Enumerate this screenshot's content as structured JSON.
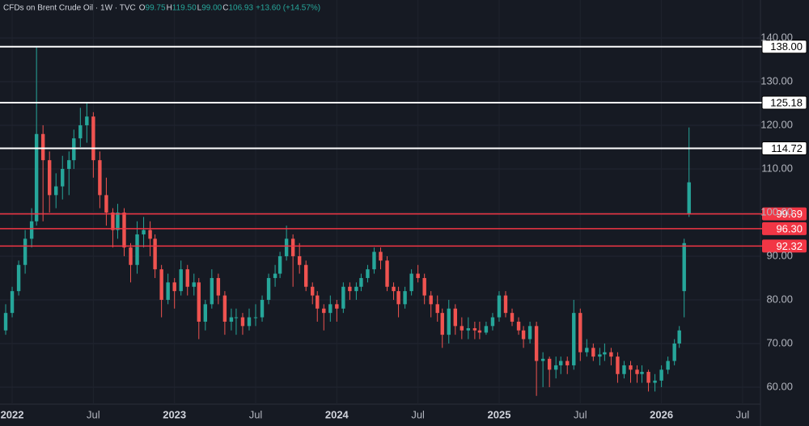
{
  "header": {
    "title": "CFDs on Brent Crude Oil · 1W · TVC",
    "ohlc": [
      {
        "key": "O",
        "value": "99.75"
      },
      {
        "key": "H",
        "value": "119.50"
      },
      {
        "key": "L",
        "value": "99.00"
      },
      {
        "key": "C",
        "value": "106.93"
      }
    ],
    "change": "+13.60 (+14.57%)"
  },
  "chart_data": {
    "type": "candlestick",
    "up_color": "#26a69a",
    "down_color": "#ef5350",
    "xlim": [
      2021.925,
      2026.61
    ],
    "ylim": [
      56.1,
      148.7
    ],
    "xticks": [
      {
        "value": 2022,
        "label": "2022"
      },
      {
        "value": 2022.5,
        "label": "Jul"
      },
      {
        "value": 2023,
        "label": "2023"
      },
      {
        "value": 2023.5,
        "label": "Jul"
      },
      {
        "value": 2024,
        "label": "2024"
      },
      {
        "value": 2024.5,
        "label": "Jul"
      },
      {
        "value": 2025,
        "label": "2025"
      },
      {
        "value": 2025.5,
        "label": "Jul"
      },
      {
        "value": 2026,
        "label": "2026"
      },
      {
        "value": 2026.5,
        "label": "Jul"
      }
    ],
    "yticks": [
      {
        "value": 140,
        "label": "140.00"
      },
      {
        "value": 130,
        "label": "130.00"
      },
      {
        "value": 120,
        "label": "120.00"
      },
      {
        "value": 110,
        "label": "110.00"
      },
      {
        "value": 100,
        "label": "100.00"
      },
      {
        "value": 90,
        "label": "90.00"
      },
      {
        "value": 80,
        "label": "80.00"
      },
      {
        "value": 70,
        "label": "70.00"
      },
      {
        "value": 60,
        "label": "60.00"
      }
    ],
    "levels": [
      {
        "value": 138,
        "label": "138.00",
        "color": "#ffffff"
      },
      {
        "value": 125.18,
        "label": "125.18",
        "color": "#ffffff"
      },
      {
        "value": 114.72,
        "label": "114.72",
        "color": "#ffffff"
      },
      {
        "value": 99.69,
        "label": "99.69",
        "color": "#f23645"
      },
      {
        "value": 96.3,
        "label": "96.30",
        "color": "#f23645"
      },
      {
        "value": 92.32,
        "label": "92.32",
        "color": "#f23645"
      }
    ],
    "x": [
      2021.96,
      2022.0,
      2022.04,
      2022.08,
      2022.12,
      2022.15,
      2022.19,
      2022.23,
      2022.27,
      2022.31,
      2022.35,
      2022.38,
      2022.42,
      2022.46,
      2022.5,
      2022.54,
      2022.58,
      2022.62,
      2022.65,
      2022.69,
      2022.73,
      2022.77,
      2022.81,
      2022.85,
      2022.88,
      2022.92,
      2022.96,
      2023.0,
      2023.04,
      2023.08,
      2023.12,
      2023.15,
      2023.19,
      2023.23,
      2023.27,
      2023.31,
      2023.35,
      2023.38,
      2023.42,
      2023.46,
      2023.5,
      2023.54,
      2023.58,
      2023.62,
      2023.65,
      2023.69,
      2023.73,
      2023.77,
      2023.81,
      2023.85,
      2023.88,
      2023.92,
      2023.96,
      2024.0,
      2024.04,
      2024.08,
      2024.12,
      2024.15,
      2024.19,
      2024.23,
      2024.27,
      2024.31,
      2024.35,
      2024.38,
      2024.42,
      2024.46,
      2024.5,
      2024.54,
      2024.58,
      2024.62,
      2024.65,
      2024.69,
      2024.73,
      2024.77,
      2024.81,
      2024.85,
      2024.88,
      2024.92,
      2024.96,
      2025.0,
      2025.04,
      2025.08,
      2025.12,
      2025.15,
      2025.19,
      2025.23,
      2025.27,
      2025.31,
      2025.35,
      2025.38,
      2025.42,
      2025.46,
      2025.5,
      2025.54,
      2025.58,
      2025.62,
      2025.65,
      2025.69,
      2025.73,
      2025.77,
      2025.81,
      2025.85,
      2025.88,
      2025.92,
      2025.96,
      2026.0,
      2026.04,
      2026.08,
      2026.11,
      2026.14,
      2026.17
    ],
    "candles": [
      [
        73,
        79,
        72,
        77
      ],
      [
        77,
        83,
        76,
        82
      ],
      [
        82,
        89,
        81,
        88
      ],
      [
        88,
        96,
        86,
        94
      ],
      [
        94,
        101,
        92,
        98
      ],
      [
        98,
        138,
        97,
        118
      ],
      [
        118,
        120,
        98,
        112
      ],
      [
        112,
        114,
        100,
        104
      ],
      [
        104,
        109,
        101,
        106
      ],
      [
        106,
        113,
        103,
        110
      ],
      [
        110,
        114,
        104,
        112
      ],
      [
        112,
        119,
        110,
        117
      ],
      [
        117,
        124,
        115,
        120
      ],
      [
        120,
        125,
        116,
        122
      ],
      [
        122,
        123,
        108,
        112
      ],
      [
        112,
        114,
        101,
        104
      ],
      [
        104,
        108,
        97,
        100
      ],
      [
        100,
        101,
        92,
        96
      ],
      [
        96,
        102,
        94,
        100
      ],
      [
        100,
        101,
        90,
        92
      ],
      [
        92,
        93,
        84,
        88
      ],
      [
        88,
        98,
        86,
        95
      ],
      [
        95,
        99,
        92,
        96
      ],
      [
        96,
        98,
        90,
        94
      ],
      [
        94,
        95,
        85,
        87
      ],
      [
        87,
        88,
        76,
        80
      ],
      [
        80,
        86,
        79,
        84
      ],
      [
        84,
        85,
        78,
        82
      ],
      [
        82,
        89,
        81,
        87
      ],
      [
        87,
        88,
        81,
        83
      ],
      [
        83,
        86,
        81,
        84
      ],
      [
        84,
        85,
        71,
        75
      ],
      [
        75,
        80,
        73,
        79
      ],
      [
        79,
        87,
        78,
        85
      ],
      [
        85,
        86,
        79,
        81
      ],
      [
        81,
        82,
        72,
        75
      ],
      [
        75,
        78,
        73,
        76
      ],
      [
        76,
        78,
        72,
        76
      ],
      [
        76,
        77,
        72,
        74
      ],
      [
        74,
        78,
        73,
        76
      ],
      [
        76,
        79,
        74,
        76
      ],
      [
        76,
        81,
        75,
        80
      ],
      [
        80,
        86,
        79,
        85
      ],
      [
        85,
        88,
        83,
        86
      ],
      [
        86,
        91,
        85,
        90
      ],
      [
        90,
        97,
        89,
        94
      ],
      [
        94,
        95,
        83,
        90
      ],
      [
        90,
        93,
        86,
        88
      ],
      [
        88,
        89,
        82,
        83
      ],
      [
        83,
        84,
        79,
        81
      ],
      [
        81,
        82,
        75,
        78
      ],
      [
        78,
        79,
        73,
        77
      ],
      [
        77,
        81,
        75,
        79
      ],
      [
        79,
        80,
        75,
        78
      ],
      [
        78,
        84,
        77,
        83
      ],
      [
        83,
        84,
        80,
        82
      ],
      [
        82,
        84,
        80,
        83
      ],
      [
        83,
        86,
        82,
        85
      ],
      [
        85,
        88,
        84,
        87
      ],
      [
        87,
        92,
        86,
        91
      ],
      [
        91,
        92,
        87,
        89
      ],
      [
        89,
        90,
        82,
        83
      ],
      [
        83,
        84,
        80,
        82
      ],
      [
        82,
        83,
        76,
        79
      ],
      [
        79,
        83,
        78,
        82
      ],
      [
        82,
        87,
        81,
        86
      ],
      [
        86,
        88,
        84,
        85
      ],
      [
        85,
        86,
        79,
        81
      ],
      [
        81,
        82,
        76,
        79
      ],
      [
        79,
        81,
        75,
        77
      ],
      [
        77,
        78,
        69,
        72
      ],
      [
        72,
        80,
        70,
        78
      ],
      [
        78,
        79,
        72,
        74
      ],
      [
        74,
        76,
        71,
        73
      ],
      [
        73,
        76,
        71,
        73.5
      ],
      [
        73.5,
        75,
        71,
        73
      ],
      [
        73,
        75,
        71,
        72.5
      ],
      [
        72.5,
        75,
        72,
        74
      ],
      [
        74,
        77,
        73,
        76
      ],
      [
        76,
        82,
        75,
        81
      ],
      [
        81,
        82,
        76,
        77
      ],
      [
        77,
        78,
        74,
        75
      ],
      [
        75,
        76,
        72,
        73
      ],
      [
        73,
        74,
        69,
        71
      ],
      [
        71,
        75,
        70,
        74
      ],
      [
        74,
        75,
        58,
        66
      ],
      [
        66,
        68,
        60,
        66.5
      ],
      [
        66.5,
        67,
        60,
        64
      ],
      [
        64,
        67,
        62,
        65
      ],
      [
        65,
        67,
        63,
        66
      ],
      [
        66,
        67,
        63,
        65
      ],
      [
        65,
        80,
        64,
        77
      ],
      [
        77,
        78,
        66,
        68
      ],
      [
        68,
        71,
        67,
        69
      ],
      [
        69,
        70,
        66,
        67
      ],
      [
        67,
        69,
        65,
        67.5
      ],
      [
        67.5,
        70,
        66,
        68
      ],
      [
        68,
        69,
        65,
        67
      ],
      [
        67,
        68,
        61,
        63
      ],
      [
        63,
        66,
        62,
        65
      ],
      [
        65,
        66,
        61,
        64
      ],
      [
        64,
        65,
        61,
        63
      ],
      [
        63,
        65,
        61,
        63.5
      ],
      [
        63.5,
        64,
        59,
        61
      ],
      [
        61,
        63,
        59,
        61.5
      ],
      [
        61.5,
        65,
        60,
        64
      ],
      [
        64,
        67,
        63,
        66
      ],
      [
        66,
        71,
        65,
        70
      ],
      [
        70,
        74,
        69,
        73
      ],
      [
        82,
        94,
        76,
        93
      ],
      [
        99.75,
        119.5,
        99,
        106.93
      ]
    ]
  }
}
